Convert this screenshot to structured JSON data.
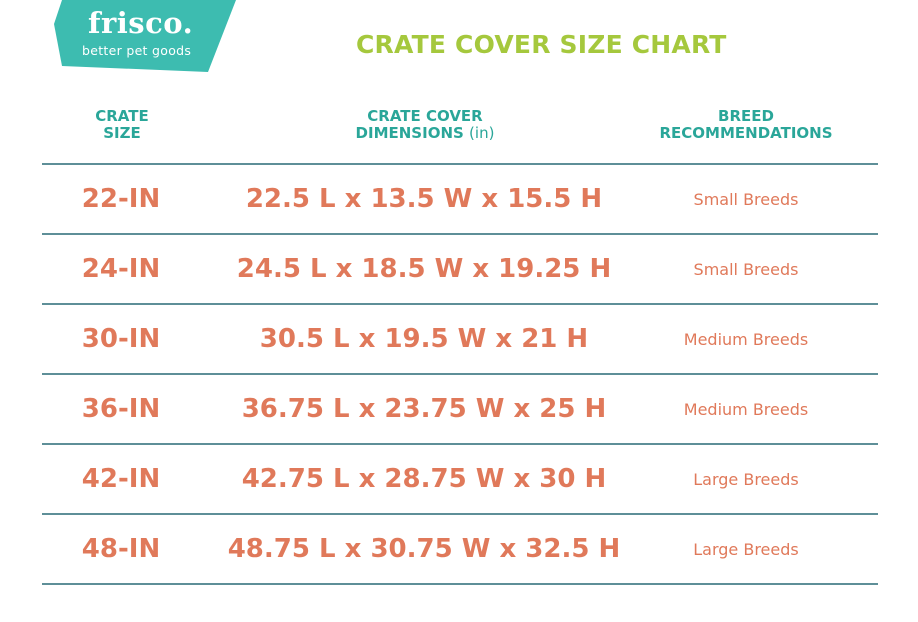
{
  "logo": {
    "brand": "frisco.",
    "tagline": "better pet goods",
    "color": "#3dbcb0"
  },
  "title": "CRATE COVER SIZE CHART",
  "headers": {
    "size": "CRATE SIZE",
    "dimensions": "CRATE COVER DIMENSIONS",
    "dimensions_unit": "(in)",
    "breed": "BREED RECOMMENDATIONS"
  },
  "colors": {
    "title": "#a5c83d",
    "header": "#2aa699",
    "values": "#e0795a",
    "rule": "#5e8f98"
  },
  "rows": [
    {
      "size": "22-IN",
      "dimensions": "22.5 L x 13.5 W x 15.5 H",
      "breed": "Small Breeds"
    },
    {
      "size": "24-IN",
      "dimensions": "24.5 L x 18.5 W x 19.25 H",
      "breed": "Small Breeds"
    },
    {
      "size": "30-IN",
      "dimensions": "30.5 L x 19.5 W x 21 H",
      "breed": "Medium Breeds"
    },
    {
      "size": "36-IN",
      "dimensions": "36.75 L x 23.75 W x 25 H",
      "breed": "Medium Breeds"
    },
    {
      "size": "42-IN",
      "dimensions": "42.75 L x 28.75 W x 30 H",
      "breed": "Large Breeds"
    },
    {
      "size": "48-IN",
      "dimensions": "48.75 L x 30.75 W x 32.5 H",
      "breed": "Large Breeds"
    }
  ]
}
